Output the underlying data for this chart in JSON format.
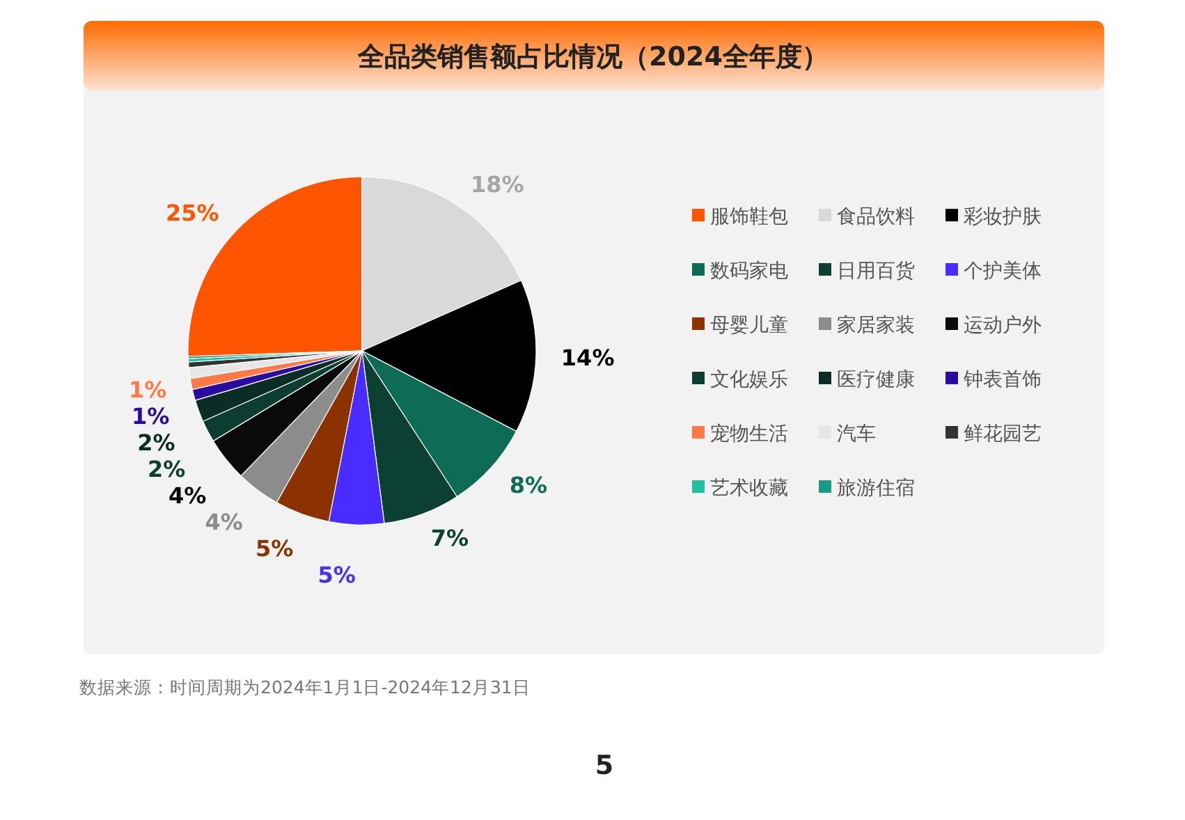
{
  "chart_data": {
    "type": "pie",
    "title": "全品类销售额占比情况（2024全年度）",
    "categories": [
      "服饰鞋包",
      "食品饮料",
      "彩妆护肤",
      "数码家电",
      "日用百货",
      "个护美体",
      "母婴儿童",
      "家居家装",
      "运动户外",
      "文化娱乐",
      "医疗健康",
      "钟表首饰",
      "宠物生活",
      "汽车",
      "鲜花园艺",
      "艺术收藏",
      "旅游住宿"
    ],
    "values": [
      25,
      18,
      14,
      8,
      7,
      5,
      5,
      4,
      4,
      2,
      2,
      1,
      1,
      1,
      0.5,
      0.3,
      0.2
    ],
    "value_labels": [
      "25%",
      "18%",
      "14%",
      "8%",
      "7%",
      "5%",
      "5%",
      "4%",
      "4%",
      "2%",
      "2%",
      "1%",
      "1%",
      null,
      null,
      null,
      null
    ],
    "colors": [
      "#ff5500",
      "#d9d9d9",
      "#000000",
      "#0e6b55",
      "#0b4033",
      "#4b2cff",
      "#8b3200",
      "#8c8c8c",
      "#0a0a0a",
      "#0d3d30",
      "#0a2e25",
      "#2a0ca0",
      "#ff7a45",
      "#e6e6e6",
      "#333333",
      "#20c0a0",
      "#1a9a80"
    ],
    "legend": "right",
    "annotations": [
      "数据来源：时间周期为2024年1月1日-2024年12月31日",
      "5"
    ]
  }
}
